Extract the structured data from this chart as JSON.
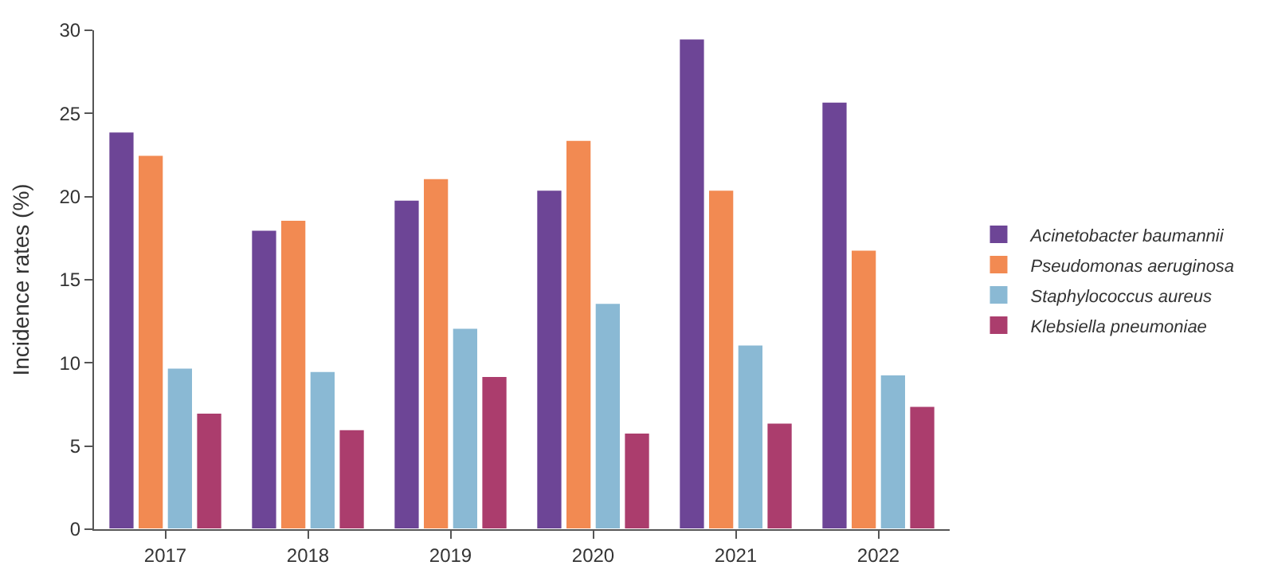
{
  "chart_data": {
    "type": "bar",
    "ylabel": "Incidence rates (%)",
    "categories": [
      "2017",
      "2018",
      "2019",
      "2020",
      "2021",
      "2022"
    ],
    "series": [
      {
        "name": "Acinetobacter baumannii",
        "color": "#6d4596",
        "values": [
          23.9,
          18.0,
          19.8,
          20.4,
          29.5,
          25.7
        ]
      },
      {
        "name": "Pseudomonas aeruginosa",
        "color": "#f28a52",
        "values": [
          22.5,
          18.6,
          21.1,
          23.4,
          20.4,
          16.8
        ]
      },
      {
        "name": "Staphylococcus aureus",
        "color": "#8ab9d4",
        "values": [
          9.7,
          9.5,
          12.1,
          13.6,
          11.1,
          9.3
        ]
      },
      {
        "name": "Klebsiella pneumoniae",
        "color": "#ab3d6d",
        "values": [
          7.0,
          6.0,
          9.2,
          5.8,
          6.4,
          7.4
        ]
      }
    ],
    "ylim": [
      0,
      30
    ],
    "yticks": [
      0,
      5,
      10,
      15,
      20,
      25,
      30
    ],
    "legend": "right"
  }
}
